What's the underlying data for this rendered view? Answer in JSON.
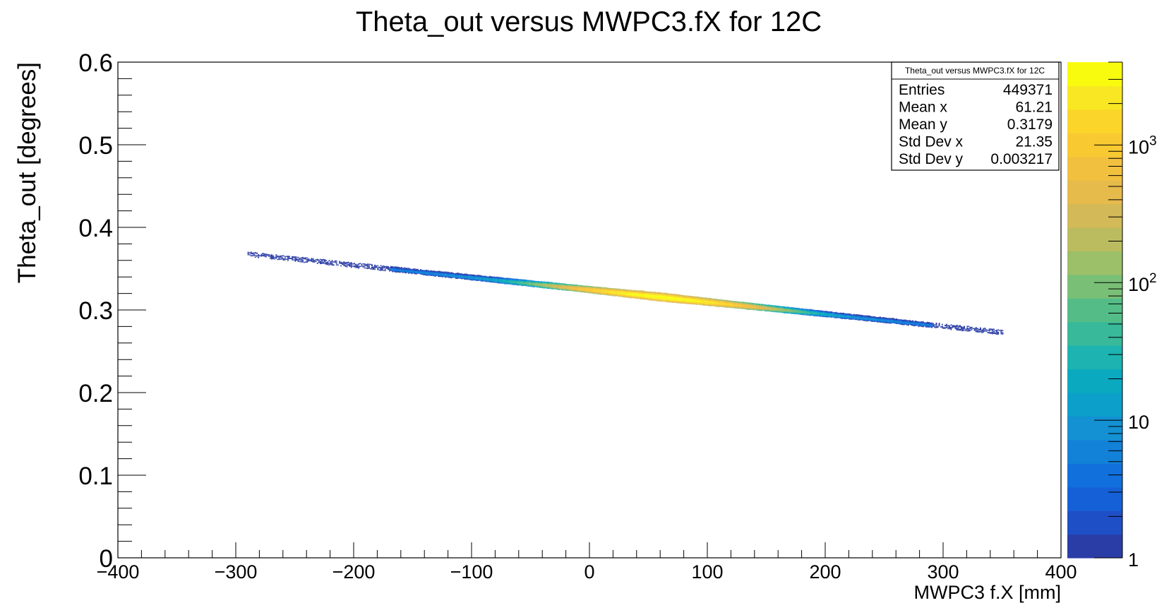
{
  "chart_data": {
    "type": "heatmap",
    "title": "Theta_out versus MWPC3.fX for 12C",
    "xlabel": "MWPC3 f.X [mm]",
    "ylabel": "Theta_out [degrees]",
    "xlim": [
      -400,
      400
    ],
    "ylim": [
      0,
      0.6
    ],
    "x_ticks": [
      "−400",
      "−300",
      "−200",
      "−100",
      "0",
      "100",
      "200",
      "300",
      "400"
    ],
    "y_ticks": [
      "0",
      "0.1",
      "0.2",
      "0.3",
      "0.4",
      "0.5",
      "0.6"
    ],
    "z_scale": "log",
    "zlim": [
      1,
      4000
    ],
    "z_ticks": [
      {
        "label": "1",
        "value": 1
      },
      {
        "label": "10",
        "value": 10
      },
      {
        "label": "10^2",
        "value": 100
      },
      {
        "label": "10^3",
        "value": 1000
      }
    ],
    "colormap": [
      "#2a3da6",
      "#1f4fc7",
      "#1560d6",
      "#1270dc",
      "#1281d8",
      "#1391d3",
      "#0c9fc9",
      "#0aa9bf",
      "#1db3b0",
      "#37b99a",
      "#54bd87",
      "#79bf76",
      "#9cbf69",
      "#bbbc5f",
      "#d3b957",
      "#e6ba4b",
      "#f2c03f",
      "#f9c932",
      "#fbd52a",
      "#f8e722",
      "#f9fb0e"
    ],
    "band": {
      "x_range": [
        -290,
        350
      ],
      "slope_deg_per_mm": -0.000148,
      "intercept_deg": 0.3253,
      "peak_x": 61,
      "peak_y": 0.3179,
      "std_x": 21.35,
      "std_y": 0.003217
    },
    "stats_box": {
      "title": "Theta_out versus MWPC3.fX for 12C",
      "rows": [
        {
          "label": "Entries",
          "value": "449371"
        },
        {
          "label": "Mean x",
          "value": "61.21"
        },
        {
          "label": "Mean y",
          "value": "0.3179"
        },
        {
          "label": "Std Dev x",
          "value": "21.35"
        },
        {
          "label": "Std Dev y",
          "value": "0.003217"
        }
      ]
    }
  }
}
